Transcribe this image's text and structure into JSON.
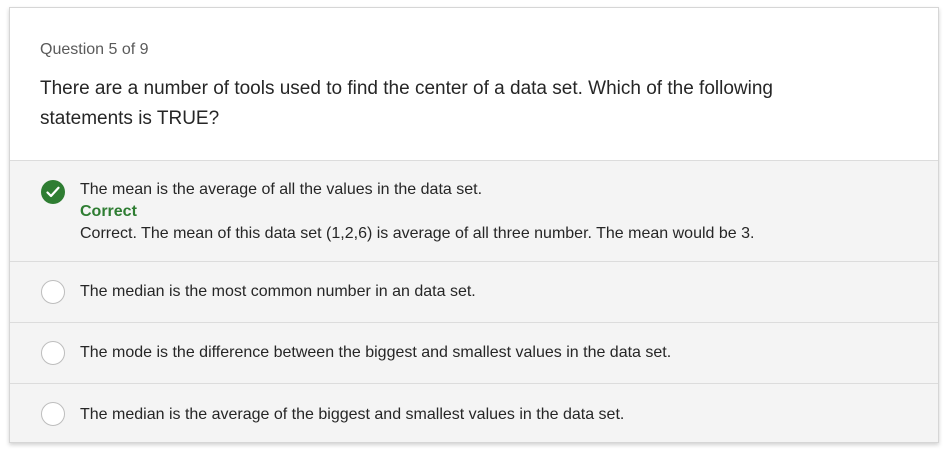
{
  "question": {
    "counter": "Question 5 of 9",
    "text": "There are a number of tools used to find the center of a data set. Which of the following statements is TRUE?"
  },
  "options": [
    {
      "text": "The mean is the average of all the values in the data set.",
      "selected": true,
      "feedback_label": "Correct",
      "feedback_text": "Correct. The mean of this data set (1,2,6) is average of all three number. The mean would be 3."
    },
    {
      "text": "The median is the most common number in an data set.",
      "selected": false
    },
    {
      "text": "The mode is the difference between the biggest and smallest values in the data set.",
      "selected": false
    },
    {
      "text": "The median is the average of the biggest and smallest values in the data set.",
      "selected": false
    }
  ],
  "colors": {
    "correct": "#2e7d32",
    "option_background": "#f4f4f4",
    "border": "#dcdcdc"
  },
  "icons": {
    "selected": "checkmark-icon"
  }
}
